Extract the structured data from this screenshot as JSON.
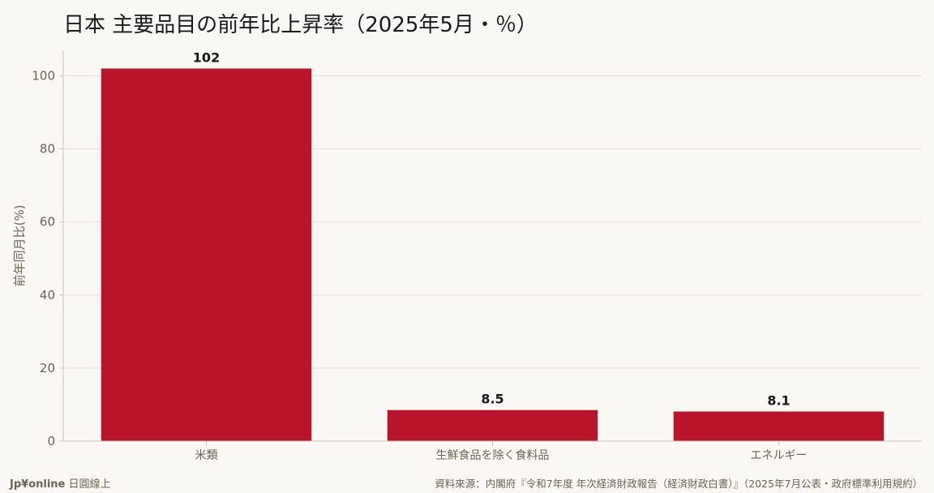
{
  "title": "日本 主要品目の前年比上昇率（2025年5月・％）",
  "footer": {
    "brand": "Jp¥online",
    "brand_sub": "日圓線上",
    "source": "資料來源：内閣府『令和7年度 年次経済財政報告（経済財政白書）』（2025年7月公表・政府標準利用規約）"
  },
  "chart_data": {
    "type": "bar",
    "title": "日本 主要品目の前年比上昇率（2025年5月・％）",
    "categories": [
      "米類",
      "生鮮食品を除く食料品",
      "エネルギー"
    ],
    "values": [
      102,
      8.5,
      8.1
    ],
    "value_labels": [
      "102",
      "8.5",
      "8.1"
    ],
    "xlabel": "",
    "ylabel": "前年同月比(%)",
    "ylim": [
      0,
      107
    ],
    "yticks": [
      0,
      20,
      40,
      60,
      80,
      100
    ],
    "grid": true,
    "bar_color": "#b8152c",
    "grid_color": "#e4e0d8",
    "axis_color": "#c9c4ba",
    "tick_label_color": "#6b6355"
  }
}
